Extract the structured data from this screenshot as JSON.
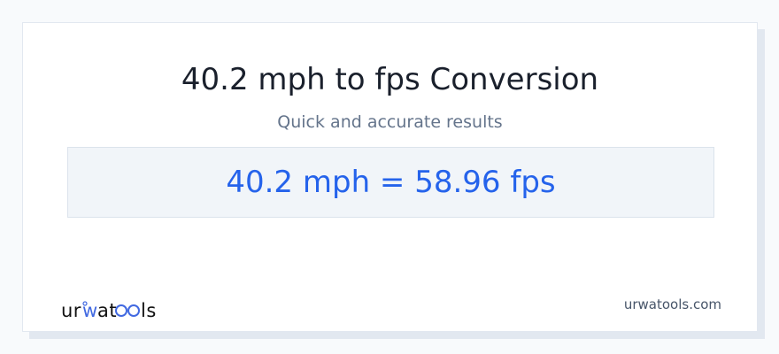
{
  "header": {
    "title": "40.2 mph to fps Conversion",
    "subtitle": "Quick and accurate results"
  },
  "result": {
    "text": "40.2 mph = 58.96 fps"
  },
  "footer": {
    "logo": "urwatools",
    "site": "urwatools.com"
  },
  "colors": {
    "accent": "#2563eb",
    "logo_accent": "#4169e1"
  }
}
